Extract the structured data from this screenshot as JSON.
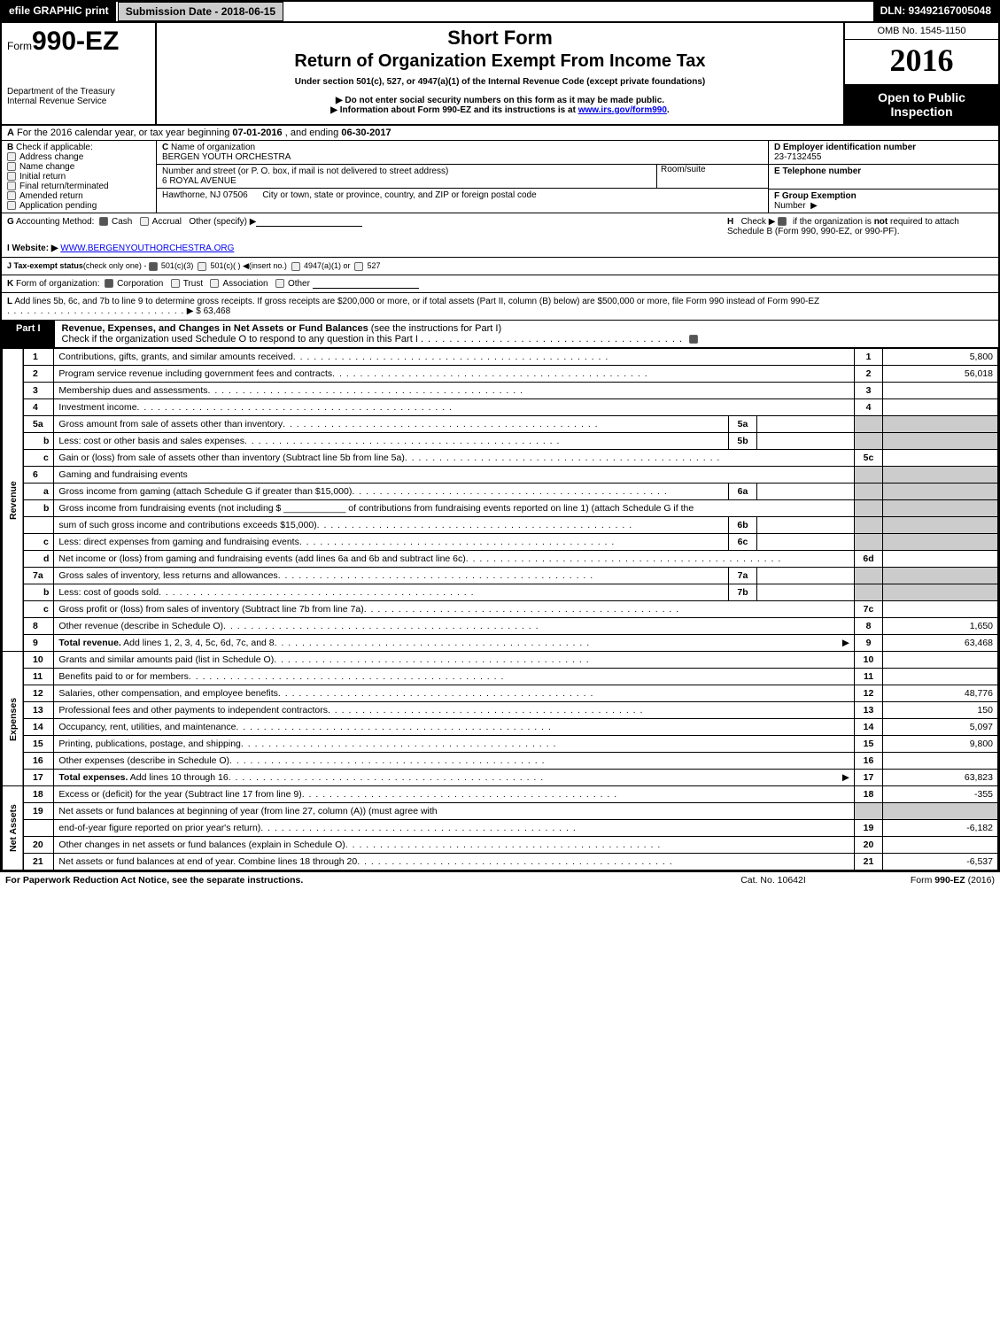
{
  "topbar": {
    "efile": "efile GRAPHIC print",
    "submission": "Submission Date - 2018-06-15",
    "dln": "DLN: 93492167005048"
  },
  "header": {
    "form_prefix": "Form",
    "form_no": "990-EZ",
    "title1": "Short Form",
    "title2": "Return of Organization Exempt From Income Tax",
    "subtitle": "Under section 501(c), 527, or 4947(a)(1) of the Internal Revenue Code (except private foundations)",
    "note1": "▶ Do not enter social security numbers on this form as it may be made public.",
    "note2": "▶ Information about Form 990-EZ and its instructions is at ",
    "note2_link": "www.irs.gov/form990",
    "note2_suffix": ".",
    "dept1": "Department of the Treasury",
    "dept2": "Internal Revenue Service",
    "omb": "OMB No. 1545-1150",
    "year": "2016",
    "open1": "Open to Public",
    "open2": "Inspection"
  },
  "A": {
    "label": "A",
    "text1": "For the 2016 calendar year, or tax year beginning ",
    "begin": "07-01-2016",
    "mid": ", and ending ",
    "end": "06-30-2017"
  },
  "B": {
    "label": "B",
    "heading": "Check if applicable:",
    "items": [
      "Address change",
      "Name change",
      "Initial return",
      "Final return/terminated",
      "Amended return",
      "Application pending"
    ]
  },
  "C": {
    "label_c": "C",
    "name_lbl": "Name of organization",
    "name": "BERGEN YOUTH ORCHESTRA",
    "addr_lbl": "Number and street (or P. O. box, if mail is not delivered to street address)",
    "room_lbl": "Room/suite",
    "addr": "6 ROYAL AVENUE",
    "city_lbl": "City or town, state or province, country, and ZIP or foreign postal code",
    "city": "Hawthorne, NJ  07506"
  },
  "D": {
    "lbl": "D Employer identification number",
    "val": "23-7132455"
  },
  "E": {
    "lbl": "E Telephone number",
    "val": ""
  },
  "F": {
    "lbl": "F Group Exemption",
    "lbl2": "Number",
    "arrow": "▶"
  },
  "G": {
    "label": "G",
    "text": "Accounting Method:",
    "cash": "Cash",
    "accrual": "Accrual",
    "other": "Other (specify) ▶"
  },
  "H": {
    "label": "H",
    "text1": "Check ▶",
    "text2": "if the organization is ",
    "not": "not",
    "text3": " required to attach Schedule B (Form 990, 990-EZ, or 990-PF)."
  },
  "I": {
    "label": "I Website: ▶",
    "val": "WWW.BERGENYOUTHORCHESTRA.ORG"
  },
  "J": {
    "label": "J Tax-exempt status",
    "small": "(check only one) -",
    "o1": "501(c)(3)",
    "o2": "501(c)(  )",
    "o2b": "◀(insert no.)",
    "o3": "4947(a)(1) or",
    "o4": "527"
  },
  "K": {
    "label": "K",
    "text": "Form of organization:",
    "o1": "Corporation",
    "o2": "Trust",
    "o3": "Association",
    "o4": "Other"
  },
  "L": {
    "label": "L",
    "text": "Add lines 5b, 6c, and 7b to line 9 to determine gross receipts. If gross receipts are $200,000 or more, or if total assets (Part II, column (B) below) are $500,000 or more, file Form 990 instead of Form 990-EZ",
    "amount": "$ 63,468"
  },
  "part1": {
    "label": "Part I",
    "title": "Revenue, Expenses, and Changes in Net Assets or Fund Balances",
    "title_suffix": " (see the instructions for Part I)",
    "check_line": "Check if the organization used Schedule O to respond to any question in this Part I"
  },
  "sides": {
    "revenue": "Revenue",
    "expenses": "Expenses",
    "netassets": "Net Assets"
  },
  "rows": [
    {
      "n": "1",
      "d": "Contributions, gifts, grants, and similar amounts received",
      "ref": "1",
      "amt": "5,800"
    },
    {
      "n": "2",
      "d": "Program service revenue including government fees and contracts",
      "ref": "2",
      "amt": "56,018"
    },
    {
      "n": "3",
      "d": "Membership dues and assessments",
      "ref": "3",
      "amt": ""
    },
    {
      "n": "4",
      "d": "Investment income",
      "ref": "4",
      "amt": ""
    },
    {
      "n": "5a",
      "d": "Gross amount from sale of assets other than inventory",
      "inner": "5a",
      "innerv": "",
      "shade": true
    },
    {
      "n": "b",
      "ind": true,
      "d": "Less: cost or other basis and sales expenses",
      "inner": "5b",
      "innerv": "",
      "shade": true
    },
    {
      "n": "c",
      "ind": true,
      "d": "Gain or (loss) from sale of assets other than inventory (Subtract line 5b from line 5a)",
      "ref": "5c",
      "amt": ""
    },
    {
      "n": "6",
      "d": "Gaming and fundraising events",
      "shade": true,
      "noref": true
    },
    {
      "n": "a",
      "ind": true,
      "d": "Gross income from gaming (attach Schedule G if greater than $15,000)",
      "inner": "6a",
      "innerv": "",
      "shade": true
    },
    {
      "n": "b",
      "ind": true,
      "d": "Gross income from fundraising events (not including $ ____________ of contributions from fundraising events reported on line 1) (attach Schedule G if the",
      "shade": true,
      "noref": true
    },
    {
      "n": "",
      "d": "sum of such gross income and contributions exceeds $15,000)",
      "inner": "6b",
      "innerv": "",
      "shade": true
    },
    {
      "n": "c",
      "ind": true,
      "d": "Less: direct expenses from gaming and fundraising events",
      "inner": "6c",
      "innerv": "",
      "shade": true
    },
    {
      "n": "d",
      "ind": true,
      "d": "Net income or (loss) from gaming and fundraising events (add lines 6a and 6b and subtract line 6c)",
      "ref": "6d",
      "amt": ""
    },
    {
      "n": "7a",
      "d": "Gross sales of inventory, less returns and allowances",
      "inner": "7a",
      "innerv": "",
      "shade": true
    },
    {
      "n": "b",
      "ind": true,
      "d": "Less: cost of goods sold",
      "inner": "7b",
      "innerv": "",
      "shade": true
    },
    {
      "n": "c",
      "ind": true,
      "d": "Gross profit or (loss) from sales of inventory (Subtract line 7b from line 7a)",
      "ref": "7c",
      "amt": ""
    },
    {
      "n": "8",
      "d": "Other revenue (describe in Schedule O)",
      "ref": "8",
      "amt": "1,650"
    },
    {
      "n": "9",
      "d": "Total revenue. Add lines 1, 2, 3, 4, 5c, 6d, 7c, and 8",
      "bold": true,
      "arrow": true,
      "ref": "9",
      "amt": "63,468"
    }
  ],
  "exp_rows": [
    {
      "n": "10",
      "d": "Grants and similar amounts paid (list in Schedule O)",
      "ref": "10",
      "amt": ""
    },
    {
      "n": "11",
      "d": "Benefits paid to or for members",
      "ref": "11",
      "amt": ""
    },
    {
      "n": "12",
      "d": "Salaries, other compensation, and employee benefits",
      "ref": "12",
      "amt": "48,776"
    },
    {
      "n": "13",
      "d": "Professional fees and other payments to independent contractors",
      "ref": "13",
      "amt": "150"
    },
    {
      "n": "14",
      "d": "Occupancy, rent, utilities, and maintenance",
      "ref": "14",
      "amt": "5,097"
    },
    {
      "n": "15",
      "d": "Printing, publications, postage, and shipping",
      "ref": "15",
      "amt": "9,800"
    },
    {
      "n": "16",
      "d": "Other expenses (describe in Schedule O)",
      "ref": "16",
      "amt": ""
    },
    {
      "n": "17",
      "d": "Total expenses. Add lines 10 through 16",
      "bold": true,
      "arrow": true,
      "ref": "17",
      "amt": "63,823"
    }
  ],
  "na_rows": [
    {
      "n": "18",
      "d": "Excess or (deficit) for the year (Subtract line 17 from line 9)",
      "ref": "18",
      "amt": "-355"
    },
    {
      "n": "19",
      "d": "Net assets or fund balances at beginning of year (from line 27, column (A)) (must agree with",
      "shade": true,
      "noref": true
    },
    {
      "n": "",
      "d": "end-of-year figure reported on prior year's return)",
      "ref": "19",
      "amt": "-6,182"
    },
    {
      "n": "20",
      "d": "Other changes in net assets or fund balances (explain in Schedule O)",
      "ref": "20",
      "amt": ""
    },
    {
      "n": "21",
      "d": "Net assets or fund balances at end of year. Combine lines 18 through 20",
      "ref": "21",
      "amt": "-6,537"
    }
  ],
  "footer": {
    "left": "For Paperwork Reduction Act Notice, see the separate instructions.",
    "mid": "Cat. No. 10642I",
    "right_pre": "Form ",
    "right_form": "990-EZ",
    "right_suf": " (2016)"
  }
}
